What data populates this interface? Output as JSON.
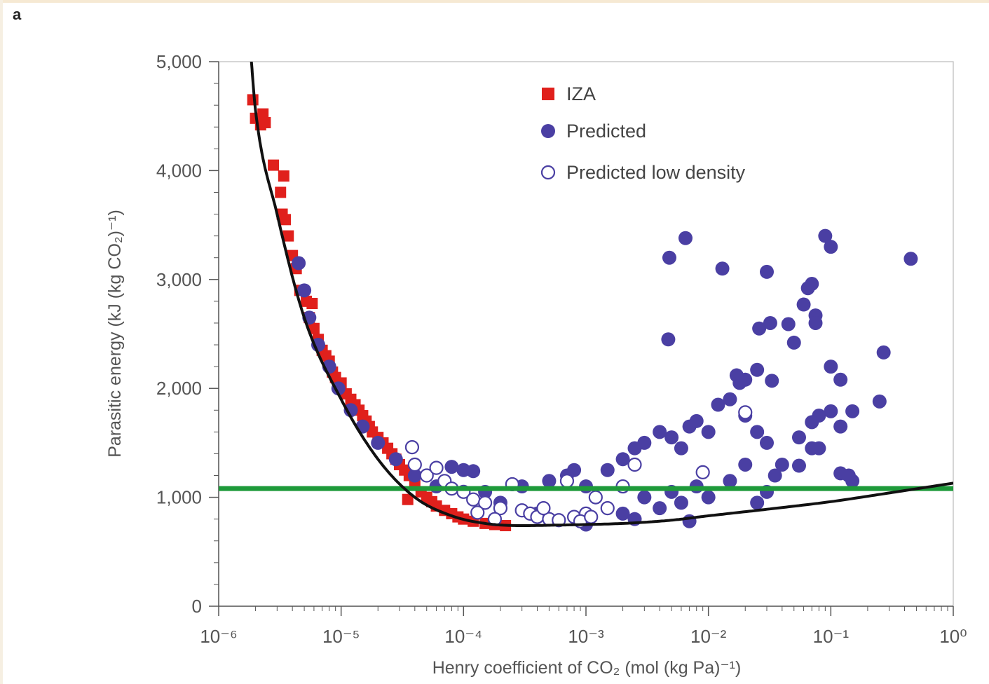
{
  "panel_label": "a",
  "colors": {
    "iza": "#e0201c",
    "predicted": "#4a3fa3",
    "fit_curve": "#111111",
    "threshold_line": "#1e9a3a",
    "axis": "#555555"
  },
  "chart_data": {
    "type": "scatter",
    "x_scale": "log",
    "xlim": [
      1e-06,
      1
    ],
    "ylim": [
      0,
      5000
    ],
    "xlabel": "Henry coefficient of CO₂ (mol (kg Pa)⁻¹)",
    "ylabel": "Parasitic energy (kJ (kg CO₂)⁻¹)",
    "x_ticks": [
      1e-06,
      1e-05,
      0.0001,
      0.001,
      0.01,
      0.1,
      1
    ],
    "x_tick_labels": [
      "10⁻⁶",
      "10⁻⁵",
      "10⁻⁴",
      "10⁻³",
      "10⁻²",
      "10⁻¹",
      "10⁰"
    ],
    "y_ticks": [
      0,
      1000,
      2000,
      3000,
      4000,
      5000
    ],
    "y_tick_labels": [
      "0",
      "1,000",
      "2,000",
      "3,000",
      "4,000",
      "5,000"
    ],
    "grid": false,
    "legend_placement": "top-center",
    "legend": [
      "IZA",
      "Predicted",
      "Predicted low density"
    ],
    "series": [
      {
        "name": "IZA",
        "marker": "filled-square",
        "points": [
          [
            1.9e-06,
            4650
          ],
          [
            2e-06,
            4480
          ],
          [
            2.2e-06,
            4420
          ],
          [
            2.3e-06,
            4520
          ],
          [
            2.4e-06,
            4440
          ],
          [
            2.8e-06,
            4050
          ],
          [
            3.4e-06,
            3950
          ],
          [
            3.2e-06,
            3800
          ],
          [
            3.3e-06,
            3600
          ],
          [
            3.5e-06,
            3550
          ],
          [
            3.7e-06,
            3400
          ],
          [
            4e-06,
            3220
          ],
          [
            4.3e-06,
            3100
          ],
          [
            4.6e-06,
            2900
          ],
          [
            5.2e-06,
            2800
          ],
          [
            5.8e-06,
            2780
          ],
          [
            5.5e-06,
            2650
          ],
          [
            6e-06,
            2550
          ],
          [
            6.5e-06,
            2450
          ],
          [
            7e-06,
            2350
          ],
          [
            7.5e-06,
            2300
          ],
          [
            8e-06,
            2250
          ],
          [
            8.5e-06,
            2150
          ],
          [
            9e-06,
            2100
          ],
          [
            1e-05,
            2050
          ],
          [
            1.1e-05,
            1950
          ],
          [
            1.2e-05,
            1900
          ],
          [
            1.3e-05,
            1850
          ],
          [
            1.4e-05,
            1800
          ],
          [
            1.5e-05,
            1750
          ],
          [
            1.6e-05,
            1700
          ],
          [
            1.7e-05,
            1650
          ],
          [
            1.8e-05,
            1600
          ],
          [
            2e-05,
            1550
          ],
          [
            2.2e-05,
            1500
          ],
          [
            2.4e-05,
            1450
          ],
          [
            2.6e-05,
            1400
          ],
          [
            2.8e-05,
            1350
          ],
          [
            3e-05,
            1300
          ],
          [
            3.3e-05,
            1250
          ],
          [
            3.6e-05,
            1200
          ],
          [
            4e-05,
            1150
          ],
          [
            3.5e-05,
            980
          ],
          [
            4.5e-05,
            1050
          ],
          [
            5e-05,
            1000
          ],
          [
            5.5e-05,
            960
          ],
          [
            6e-05,
            920
          ],
          [
            7e-05,
            880
          ],
          [
            8e-05,
            850
          ],
          [
            9e-05,
            820
          ],
          [
            0.0001,
            800
          ],
          [
            0.00012,
            780
          ],
          [
            0.00015,
            760
          ],
          [
            0.00018,
            750
          ],
          [
            0.00022,
            740
          ]
        ]
      },
      {
        "name": "Predicted",
        "marker": "filled-circle",
        "points": [
          [
            4.5e-06,
            3150
          ],
          [
            5e-06,
            2900
          ],
          [
            5.5e-06,
            2650
          ],
          [
            6.5e-06,
            2400
          ],
          [
            8e-06,
            2200
          ],
          [
            9.5e-06,
            2000
          ],
          [
            1.2e-05,
            1800
          ],
          [
            1.5e-05,
            1650
          ],
          [
            2e-05,
            1500
          ],
          [
            2.8e-05,
            1350
          ],
          [
            4e-05,
            1200
          ],
          [
            6e-05,
            1100
          ],
          [
            8e-05,
            1280
          ],
          [
            0.0001,
            1250
          ],
          [
            0.00012,
            1240
          ],
          [
            0.00015,
            1050
          ],
          [
            0.0002,
            950
          ],
          [
            0.0003,
            1100
          ],
          [
            0.0004,
            850
          ],
          [
            0.0005,
            1150
          ],
          [
            0.0007,
            1200
          ],
          [
            0.0008,
            1250
          ],
          [
            0.001,
            1100
          ],
          [
            0.0015,
            1250
          ],
          [
            0.002,
            1350
          ],
          [
            0.0025,
            1450
          ],
          [
            0.003,
            1500
          ],
          [
            0.004,
            1600
          ],
          [
            0.005,
            1550
          ],
          [
            0.006,
            1450
          ],
          [
            0.007,
            1650
          ],
          [
            0.008,
            1700
          ],
          [
            0.01,
            1600
          ],
          [
            0.012,
            1850
          ],
          [
            0.015,
            1900
          ],
          [
            0.018,
            2050
          ],
          [
            0.02,
            1750
          ],
          [
            0.025,
            1600
          ],
          [
            0.03,
            1500
          ],
          [
            0.04,
            1300
          ],
          [
            0.003,
            1000
          ],
          [
            0.004,
            900
          ],
          [
            0.005,
            1050
          ],
          [
            0.006,
            950
          ],
          [
            0.008,
            1100
          ],
          [
            0.01,
            1000
          ],
          [
            0.015,
            1150
          ],
          [
            0.02,
            1300
          ],
          [
            0.025,
            950
          ],
          [
            0.03,
            1050
          ],
          [
            0.035,
            1200
          ],
          [
            0.002,
            850
          ],
          [
            0.0025,
            800
          ],
          [
            0.001,
            750
          ],
          [
            0.007,
            780
          ],
          [
            0.0048,
            3200
          ],
          [
            0.0065,
            3380
          ],
          [
            0.013,
            3100
          ],
          [
            0.03,
            3070
          ],
          [
            0.09,
            3400
          ],
          [
            0.1,
            3300
          ],
          [
            0.45,
            3190
          ],
          [
            0.0047,
            2450
          ],
          [
            0.026,
            2550
          ],
          [
            0.032,
            2600
          ],
          [
            0.045,
            2590
          ],
          [
            0.05,
            2420
          ],
          [
            0.06,
            2770
          ],
          [
            0.065,
            2920
          ],
          [
            0.07,
            2960
          ],
          [
            0.075,
            2670
          ],
          [
            0.075,
            2600
          ],
          [
            0.1,
            2200
          ],
          [
            0.12,
            2080
          ],
          [
            0.27,
            2330
          ],
          [
            0.25,
            1880
          ],
          [
            0.1,
            1790
          ],
          [
            0.08,
            1750
          ],
          [
            0.07,
            1690
          ],
          [
            0.12,
            1650
          ],
          [
            0.15,
            1790
          ],
          [
            0.033,
            2070
          ],
          [
            0.025,
            2170
          ],
          [
            0.02,
            2080
          ],
          [
            0.017,
            2120
          ],
          [
            0.055,
            1550
          ],
          [
            0.07,
            1450
          ],
          [
            0.055,
            1290
          ],
          [
            0.08,
            1450
          ],
          [
            0.12,
            1220
          ],
          [
            0.15,
            1150
          ],
          [
            0.14,
            1200
          ]
        ]
      },
      {
        "name": "Predicted low density",
        "marker": "open-circle",
        "points": [
          [
            3.8e-05,
            1460
          ],
          [
            4e-05,
            1300
          ],
          [
            5e-05,
            1200
          ],
          [
            6e-05,
            1270
          ],
          [
            7e-05,
            1150
          ],
          [
            8e-05,
            1080
          ],
          [
            0.0001,
            1050
          ],
          [
            0.00012,
            980
          ],
          [
            0.00015,
            950
          ],
          [
            0.0002,
            900
          ],
          [
            0.00025,
            1120
          ],
          [
            0.0003,
            880
          ],
          [
            0.00035,
            850
          ],
          [
            0.0004,
            820
          ],
          [
            0.0005,
            800
          ],
          [
            0.0006,
            790
          ],
          [
            0.0007,
            1150
          ],
          [
            0.0008,
            820
          ],
          [
            0.001,
            850
          ],
          [
            0.0012,
            1000
          ],
          [
            0.0015,
            900
          ],
          [
            0.002,
            1100
          ],
          [
            0.0025,
            1300
          ],
          [
            0.00013,
            860
          ],
          [
            0.00018,
            800
          ],
          [
            0.00045,
            900
          ],
          [
            0.0009,
            780
          ],
          [
            0.0011,
            820
          ],
          [
            0.009,
            1230
          ],
          [
            0.02,
            1780
          ]
        ]
      }
    ],
    "fit_curve": {
      "name": "",
      "x": [
        1.85e-06,
        2e-06,
        3e-06,
        5e-06,
        1e-05,
        2e-05,
        4e-05,
        8e-05,
        0.00015,
        0.0003,
        0.0006,
        0.001,
        0.002,
        0.005,
        0.01,
        0.03,
        0.1,
        0.3,
        1
      ],
      "y": [
        5000,
        4550,
        3600,
        2650,
        1900,
        1350,
        1000,
        830,
        760,
        740,
        745,
        750,
        760,
        790,
        830,
        890,
        960,
        1040,
        1130
      ]
    },
    "threshold_line": {
      "y": 1080
    }
  }
}
